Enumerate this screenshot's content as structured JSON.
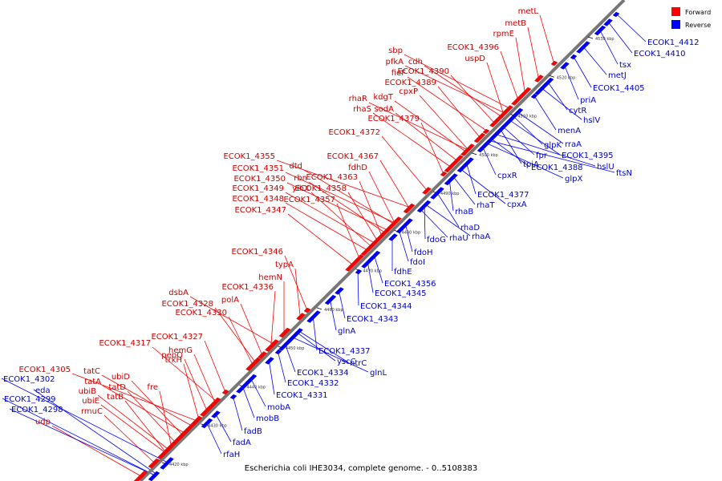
{
  "caption": "Escherichia coli IHE3034, complete genome. - 0..5108383",
  "legend": [
    {
      "label": "Forward",
      "color": "#ff0000"
    },
    {
      "label": "Reverse",
      "color": "#0000ff"
    }
  ],
  "colors": {
    "forward": "#ff0000",
    "reverse": "#0000ff",
    "forward_label": "#cc0000",
    "reverse_label": "#0000cc",
    "backbone": "#777777"
  },
  "ticks": [
    "4420 kbp",
    "4430 kbp",
    "4440 kbp",
    "4450 kbp",
    "4460 kbp",
    "4470 kbp",
    "4480 kbp",
    "4490 kbp",
    "4500 kbp",
    "4510 kbp",
    "4520 kbp",
    "4530 kbp"
  ],
  "forward_genes": [
    "metL",
    "metB",
    "rpmE",
    "ECOK1_4396",
    "uspD",
    "sbp",
    "pfkA",
    "cdh",
    "fieF",
    "ECOK1_4390",
    "ECOK1_4389",
    "cpxP",
    "rhaR",
    "kdgT",
    "rhaS",
    "sodA",
    "ECOK1_4379",
    "ECOK1_4372",
    "ECOK1_4367",
    "fdhD",
    "ECOK1_4363",
    "ECOK1_4355",
    "ECOK1_4351",
    "dtd",
    "ECOK1_4350",
    "rbn",
    "yihX",
    "ECOK1_4358",
    "ECOK1_4349",
    "ECOK1_4357",
    "ECOK1_4348",
    "ECOK1_4347",
    "ECOK1_4346",
    "typA",
    "hemN",
    "ECOK1_4336",
    "dsbA",
    "polA",
    "ECOK1_4328",
    "ECOK1_4330",
    "ECOK1_4327",
    "ECOK1_4317",
    "hemG",
    "pepQ",
    "trkH",
    "ECOK1_4305",
    "tatC",
    "ubiD",
    "tatA",
    "tatD",
    "ubiB",
    "ubiE",
    "tatB",
    "fre",
    "rmuC",
    "udp"
  ],
  "reverse_genes": [
    "ECOK1_4412",
    "ECOK1_4410",
    "tsx",
    "metJ",
    "ECOK1_4405",
    "priA",
    "cytR",
    "hslV",
    "menA",
    "glpK",
    "rraA",
    "ECOK1_4395",
    "fpr",
    "hslU",
    "tpiA",
    "ECOK1_4388",
    "ftsN",
    "glpX",
    "cpxR",
    "ECOK1_4377",
    "cpxA",
    "rhaT",
    "rhaB",
    "rhaD",
    "rhaU",
    "rhaA",
    "fdoG",
    "fdoH",
    "fdoI",
    "fdhE",
    "ECOK1_4356",
    "ECOK1_4345",
    "ECOK1_4344",
    "ECOK1_4343",
    "glnA",
    "ECOK1_4337",
    "yscC",
    "ntrC",
    "glnL",
    "ECOK1_4334",
    "ECOK1_4332",
    "ECOK1_4331",
    "mobA",
    "mobB",
    "fadB",
    "fadA",
    "rfaH",
    "ECOK1_4302",
    "eda",
    "ECOK1_4299",
    "ECOK1_4298"
  ]
}
